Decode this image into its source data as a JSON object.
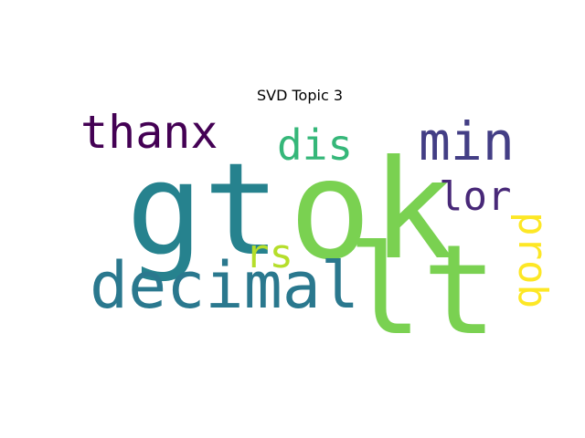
{
  "chart_data": {
    "type": "wordcloud",
    "title": "SVD Topic 3",
    "words": [
      {
        "text": "ok",
        "weight": 1.0,
        "color": "#7ad151",
        "orientation": "horizontal"
      },
      {
        "text": "gt",
        "weight": 0.95,
        "color": "#26828e",
        "orientation": "horizontal"
      },
      {
        "text": "lt",
        "weight": 0.9,
        "color": "#7ad151",
        "orientation": "horizontal"
      },
      {
        "text": "decimal",
        "weight": 0.55,
        "color": "#2a788e",
        "orientation": "horizontal"
      },
      {
        "text": "min",
        "weight": 0.45,
        "color": "#433e85",
        "orientation": "horizontal"
      },
      {
        "text": "thanx",
        "weight": 0.4,
        "color": "#440154",
        "orientation": "horizontal"
      },
      {
        "text": "dis",
        "weight": 0.4,
        "color": "#35b779",
        "orientation": "horizontal"
      },
      {
        "text": "lor",
        "weight": 0.35,
        "color": "#482878",
        "orientation": "horizontal"
      },
      {
        "text": "rs",
        "weight": 0.35,
        "color": "#b5de2b",
        "orientation": "horizontal"
      },
      {
        "text": "prob",
        "weight": 0.35,
        "color": "#fde725",
        "orientation": "vertical"
      }
    ]
  }
}
